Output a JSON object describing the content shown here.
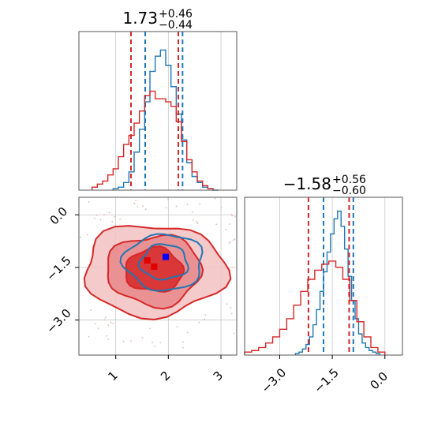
{
  "chart_data": [
    {
      "type": "histogram",
      "panel": "top-left",
      "title_value": "1.73",
      "title_plus": "+0.46",
      "title_minus": "−0.44",
      "xlim": [
        0.3,
        3.3
      ],
      "ylim": [
        0,
        1
      ],
      "grid": true,
      "series": [
        {
          "color": "#1f77b4",
          "quantiles": [
            1.56,
            2.27
          ],
          "median": 1.9,
          "x": [
            1.0,
            1.1,
            1.2,
            1.3,
            1.4,
            1.5,
            1.6,
            1.7,
            1.8,
            1.9,
            2.0,
            2.1,
            2.2,
            2.3,
            2.4,
            2.5,
            2.6,
            2.7,
            2.8,
            2.9
          ],
          "values": [
            0.01,
            0.02,
            0.05,
            0.12,
            0.25,
            0.4,
            0.58,
            0.78,
            0.88,
            0.92,
            0.82,
            0.68,
            0.5,
            0.33,
            0.18,
            0.09,
            0.05,
            0.02,
            0.01,
            0.0
          ]
        },
        {
          "color": "#d62728",
          "quantiles": [
            1.29,
            2.19
          ],
          "median": 1.73,
          "x": [
            0.6,
            0.7,
            0.8,
            0.9,
            1.0,
            1.1,
            1.2,
            1.3,
            1.4,
            1.5,
            1.6,
            1.7,
            1.8,
            1.9,
            2.0,
            2.1,
            2.2,
            2.3,
            2.4,
            2.5,
            2.6,
            2.7,
            2.8
          ],
          "values": [
            0.02,
            0.04,
            0.06,
            0.1,
            0.14,
            0.22,
            0.3,
            0.36,
            0.44,
            0.52,
            0.62,
            0.65,
            0.6,
            0.6,
            0.58,
            0.55,
            0.45,
            0.32,
            0.2,
            0.12,
            0.06,
            0.03,
            0.01
          ]
        }
      ]
    },
    {
      "type": "contour",
      "panel": "bottom-left",
      "xlim": [
        0.3,
        3.3
      ],
      "ylim": [
        -4.0,
        0.5
      ],
      "xticks": [
        "1",
        "2",
        "3"
      ],
      "yticks": [
        "0.0",
        "−1.5",
        "−3.0"
      ],
      "xtick_values": [
        1,
        2,
        3
      ],
      "ytick_values": [
        0.0,
        -1.5,
        -3.0
      ],
      "grid": true,
      "series": [
        {
          "color": "#d62728",
          "center": [
            1.73,
            -1.58
          ],
          "levels": [
            [
              0.55,
              0.62
            ],
            [
              0.9,
              1.0
            ],
            [
              1.35,
              1.3
            ]
          ],
          "marker": [
            1.6,
            -1.3
          ]
        },
        {
          "color": "#1f77b4",
          "center": [
            1.92,
            -1.35
          ],
          "levels": [
            [
              0.45,
              0.5
            ],
            [
              0.75,
              0.8
            ]
          ],
          "marker": [
            1.95,
            -1.2
          ]
        }
      ]
    },
    {
      "type": "histogram",
      "panel": "bottom-right",
      "title_value": "−1.58",
      "title_plus": "+0.56",
      "title_minus": "−0.60",
      "xlim": [
        -4.0,
        0.5
      ],
      "ylim": [
        0,
        1
      ],
      "xticks": [
        "−3.0",
        "−1.5",
        "0.0"
      ],
      "xtick_values": [
        -3.0,
        -1.5,
        0.0
      ],
      "grid": true,
      "series": [
        {
          "color": "#1f77b4",
          "quantiles": [
            -1.75,
            -0.9
          ],
          "median": -1.3,
          "x": [
            -2.5,
            -2.4,
            -2.3,
            -2.2,
            -2.1,
            -2.0,
            -1.9,
            -1.8,
            -1.7,
            -1.6,
            -1.5,
            -1.4,
            -1.3,
            -1.2,
            -1.1,
            -1.0,
            -0.9,
            -0.8,
            -0.7,
            -0.6,
            -0.5,
            -0.4,
            -0.3,
            -0.2
          ],
          "values": [
            0.01,
            0.02,
            0.04,
            0.07,
            0.12,
            0.2,
            0.3,
            0.42,
            0.55,
            0.68,
            0.8,
            0.9,
            0.95,
            0.85,
            0.7,
            0.52,
            0.36,
            0.24,
            0.14,
            0.08,
            0.05,
            0.03,
            0.02,
            0.01
          ]
        },
        {
          "color": "#d62728",
          "quantiles": [
            -2.18,
            -1.02
          ],
          "median": -1.58,
          "x": [
            -3.9,
            -3.7,
            -3.5,
            -3.3,
            -3.1,
            -2.9,
            -2.7,
            -2.5,
            -2.3,
            -2.1,
            -1.9,
            -1.7,
            -1.5,
            -1.3,
            -1.1,
            -0.9,
            -0.7,
            -0.5,
            -0.3,
            -0.1
          ],
          "values": [
            0.02,
            0.03,
            0.05,
            0.08,
            0.12,
            0.17,
            0.24,
            0.33,
            0.42,
            0.5,
            0.56,
            0.6,
            0.62,
            0.58,
            0.5,
            0.36,
            0.22,
            0.12,
            0.05,
            0.02
          ]
        }
      ]
    }
  ]
}
